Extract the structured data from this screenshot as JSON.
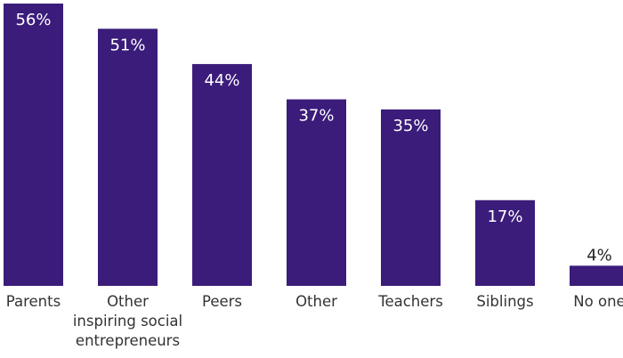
{
  "chart_data": {
    "type": "bar",
    "categories": [
      [
        "Parents"
      ],
      [
        "Other",
        "inspiring social",
        "entrepreneurs"
      ],
      [
        "Peers"
      ],
      [
        "Other"
      ],
      [
        "Teachers"
      ],
      [
        "Siblings"
      ],
      [
        "No one"
      ]
    ],
    "values": [
      56,
      51,
      44,
      37,
      35,
      17,
      4
    ],
    "value_labels": [
      "56%",
      "51%",
      "44%",
      "37%",
      "35%",
      "17%",
      "4%"
    ],
    "unit": "%",
    "ylim": [
      0,
      56
    ],
    "bar_color": "#3b1c7a",
    "grid": false,
    "legend": "none"
  }
}
